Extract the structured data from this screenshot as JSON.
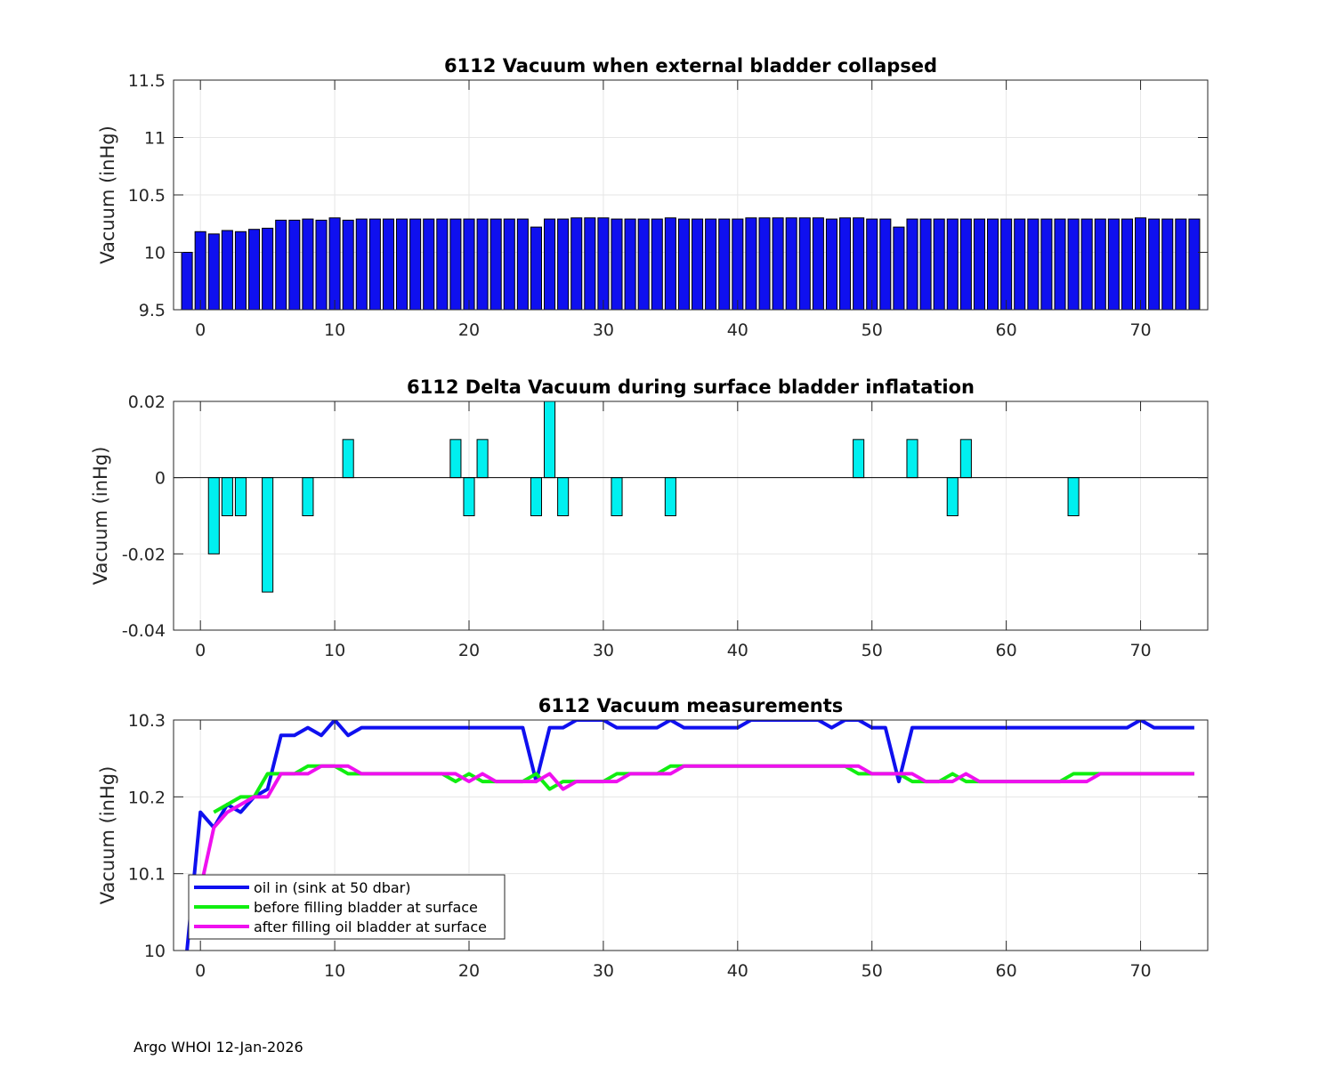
{
  "footer": "Argo WHOI 12-Jan-2026",
  "chart_data": [
    {
      "type": "bar",
      "title": "6112 Vacuum when external bladder collapsed",
      "ylabel": "Vacuum (inHg)",
      "xlabel": "",
      "xlim": [
        -2,
        75
      ],
      "ylim": [
        9.5,
        11.5
      ],
      "grid": true,
      "color": "#0f10ef",
      "xticks": [
        0,
        10,
        20,
        30,
        40,
        50,
        60,
        70
      ],
      "yticks": [
        9.5,
        10,
        10.5,
        11,
        11.5
      ],
      "ytick_labels": [
        "9.5",
        "10",
        "10.5",
        "11",
        "11.5"
      ],
      "x": [
        -1,
        0,
        1,
        2,
        3,
        4,
        5,
        6,
        7,
        8,
        9,
        10,
        11,
        12,
        13,
        14,
        15,
        16,
        17,
        18,
        19,
        20,
        21,
        22,
        23,
        24,
        25,
        26,
        27,
        28,
        29,
        30,
        31,
        32,
        33,
        34,
        35,
        36,
        37,
        38,
        39,
        40,
        41,
        42,
        43,
        44,
        45,
        46,
        47,
        48,
        49,
        50,
        51,
        52,
        53,
        54,
        55,
        56,
        57,
        58,
        59,
        60,
        61,
        62,
        63,
        64,
        65,
        66,
        67,
        68,
        69,
        70,
        71,
        72,
        73,
        74
      ],
      "values": [
        10.0,
        10.18,
        10.16,
        10.19,
        10.18,
        10.2,
        10.21,
        10.28,
        10.28,
        10.29,
        10.28,
        10.3,
        10.28,
        10.29,
        10.29,
        10.29,
        10.29,
        10.29,
        10.29,
        10.29,
        10.29,
        10.29,
        10.29,
        10.29,
        10.29,
        10.29,
        10.22,
        10.29,
        10.29,
        10.3,
        10.3,
        10.3,
        10.29,
        10.29,
        10.29,
        10.29,
        10.3,
        10.29,
        10.29,
        10.29,
        10.29,
        10.29,
        10.3,
        10.3,
        10.3,
        10.3,
        10.3,
        10.3,
        10.29,
        10.3,
        10.3,
        10.29,
        10.29,
        10.22,
        10.29,
        10.29,
        10.29,
        10.29,
        10.29,
        10.29,
        10.29,
        10.29,
        10.29,
        10.29,
        10.29,
        10.29,
        10.29,
        10.29,
        10.29,
        10.29,
        10.29,
        10.3,
        10.29,
        10.29,
        10.29,
        10.29
      ]
    },
    {
      "type": "bar",
      "title": "6112 Delta Vacuum during surface bladder inflatation",
      "ylabel": "Vacuum (inHg)",
      "xlabel": "",
      "xlim": [
        -2,
        75
      ],
      "ylim": [
        -0.04,
        0.02
      ],
      "grid": true,
      "color": "#00f0f0",
      "xticks": [
        0,
        10,
        20,
        30,
        40,
        50,
        60,
        70
      ],
      "yticks": [
        -0.04,
        -0.02,
        0,
        0.02
      ],
      "ytick_labels": [
        "-0.04",
        "-0.02",
        "0",
        "0.02"
      ],
      "x": [
        1,
        2,
        3,
        5,
        8,
        11,
        19,
        20,
        21,
        25,
        26,
        27,
        31,
        35,
        49,
        53,
        56,
        57,
        65
      ],
      "values": [
        -0.02,
        -0.01,
        -0.01,
        -0.03,
        -0.01,
        0.01,
        0.01,
        -0.01,
        0.01,
        -0.01,
        0.02,
        -0.01,
        -0.01,
        -0.01,
        0.01,
        0.01,
        -0.01,
        0.01,
        -0.01
      ]
    },
    {
      "type": "line",
      "title": "6112 Vacuum measurements",
      "ylabel": "Vacuum (inHg)",
      "xlabel": "",
      "xlim": [
        -2,
        75
      ],
      "ylim": [
        10,
        10.3
      ],
      "grid": true,
      "legend_position": "bottom-left",
      "xticks": [
        0,
        10,
        20,
        30,
        40,
        50,
        60,
        70
      ],
      "yticks": [
        10,
        10.1,
        10.2,
        10.3
      ],
      "ytick_labels": [
        "10",
        "10.1",
        "10.2",
        "10.3"
      ],
      "series": [
        {
          "name": "oil in (sink at 50 dbar)",
          "color": "#0f10ef",
          "x": [
            -1,
            0,
            1,
            2,
            3,
            4,
            5,
            6,
            7,
            8,
            9,
            10,
            11,
            12,
            13,
            14,
            15,
            16,
            17,
            18,
            19,
            20,
            21,
            22,
            23,
            24,
            25,
            26,
            27,
            28,
            29,
            30,
            31,
            32,
            33,
            34,
            35,
            36,
            37,
            38,
            39,
            40,
            41,
            42,
            43,
            44,
            45,
            46,
            47,
            48,
            49,
            50,
            51,
            52,
            53,
            54,
            55,
            56,
            57,
            58,
            59,
            60,
            61,
            62,
            63,
            64,
            65,
            66,
            67,
            68,
            69,
            70,
            71,
            72,
            73,
            74
          ],
          "values": [
            10.0,
            10.18,
            10.16,
            10.19,
            10.18,
            10.2,
            10.21,
            10.28,
            10.28,
            10.29,
            10.28,
            10.3,
            10.28,
            10.29,
            10.29,
            10.29,
            10.29,
            10.29,
            10.29,
            10.29,
            10.29,
            10.29,
            10.29,
            10.29,
            10.29,
            10.29,
            10.22,
            10.29,
            10.29,
            10.3,
            10.3,
            10.3,
            10.29,
            10.29,
            10.29,
            10.29,
            10.3,
            10.29,
            10.29,
            10.29,
            10.29,
            10.29,
            10.3,
            10.3,
            10.3,
            10.3,
            10.3,
            10.3,
            10.29,
            10.3,
            10.3,
            10.29,
            10.29,
            10.22,
            10.29,
            10.29,
            10.29,
            10.29,
            10.29,
            10.29,
            10.29,
            10.29,
            10.29,
            10.29,
            10.29,
            10.29,
            10.29,
            10.29,
            10.29,
            10.29,
            10.29,
            10.3,
            10.29,
            10.29,
            10.29,
            10.29
          ]
        },
        {
          "name": "before filling bladder at surface",
          "color": "#10ee10",
          "x": [
            1,
            2,
            3,
            4,
            5,
            6,
            7,
            8,
            9,
            10,
            11,
            12,
            13,
            14,
            15,
            16,
            17,
            18,
            19,
            20,
            21,
            22,
            23,
            24,
            25,
            26,
            27,
            28,
            29,
            30,
            31,
            32,
            33,
            34,
            35,
            36,
            37,
            38,
            39,
            40,
            41,
            42,
            43,
            44,
            45,
            46,
            47,
            48,
            49,
            50,
            51,
            52,
            53,
            54,
            55,
            56,
            57,
            58,
            59,
            60,
            61,
            62,
            63,
            64,
            65,
            66,
            67,
            68,
            69,
            70,
            71,
            72,
            73,
            74
          ],
          "values": [
            10.18,
            10.19,
            10.2,
            10.2,
            10.23,
            10.23,
            10.23,
            10.24,
            10.24,
            10.24,
            10.23,
            10.23,
            10.23,
            10.23,
            10.23,
            10.23,
            10.23,
            10.23,
            10.22,
            10.23,
            10.22,
            10.22,
            10.22,
            10.22,
            10.23,
            10.21,
            10.22,
            10.22,
            10.22,
            10.22,
            10.23,
            10.23,
            10.23,
            10.23,
            10.24,
            10.24,
            10.24,
            10.24,
            10.24,
            10.24,
            10.24,
            10.24,
            10.24,
            10.24,
            10.24,
            10.24,
            10.24,
            10.24,
            10.23,
            10.23,
            10.23,
            10.23,
            10.22,
            10.22,
            10.22,
            10.23,
            10.22,
            10.22,
            10.22,
            10.22,
            10.22,
            10.22,
            10.22,
            10.22,
            10.23,
            10.23,
            10.23,
            10.23,
            10.23,
            10.23,
            10.23,
            10.23,
            10.23,
            10.23
          ]
        },
        {
          "name": "after filling oil bladder at surface",
          "color": "#ef10ef",
          "x": [
            0,
            1,
            2,
            3,
            4,
            5,
            6,
            7,
            8,
            9,
            10,
            11,
            12,
            13,
            14,
            15,
            16,
            17,
            18,
            19,
            20,
            21,
            22,
            23,
            24,
            25,
            26,
            27,
            28,
            29,
            30,
            31,
            32,
            33,
            34,
            35,
            36,
            37,
            38,
            39,
            40,
            41,
            42,
            43,
            44,
            45,
            46,
            47,
            48,
            49,
            50,
            51,
            52,
            53,
            54,
            55,
            56,
            57,
            58,
            59,
            60,
            61,
            62,
            63,
            64,
            65,
            66,
            67,
            68,
            69,
            70,
            71,
            72,
            73,
            74
          ],
          "values": [
            10.08,
            10.16,
            10.18,
            10.19,
            10.2,
            10.2,
            10.23,
            10.23,
            10.23,
            10.24,
            10.24,
            10.24,
            10.23,
            10.23,
            10.23,
            10.23,
            10.23,
            10.23,
            10.23,
            10.23,
            10.22,
            10.23,
            10.22,
            10.22,
            10.22,
            10.22,
            10.23,
            10.21,
            10.22,
            10.22,
            10.22,
            10.22,
            10.23,
            10.23,
            10.23,
            10.23,
            10.24,
            10.24,
            10.24,
            10.24,
            10.24,
            10.24,
            10.24,
            10.24,
            10.24,
            10.24,
            10.24,
            10.24,
            10.24,
            10.24,
            10.23,
            10.23,
            10.23,
            10.23,
            10.22,
            10.22,
            10.22,
            10.23,
            10.22,
            10.22,
            10.22,
            10.22,
            10.22,
            10.22,
            10.22,
            10.22,
            10.22,
            10.23,
            10.23,
            10.23,
            10.23,
            10.23,
            10.23,
            10.23,
            10.23
          ]
        }
      ]
    }
  ]
}
